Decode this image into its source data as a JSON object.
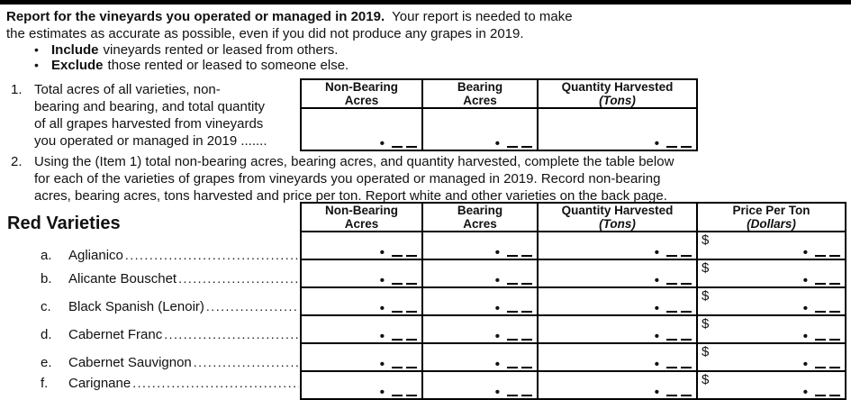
{
  "intro": {
    "heading_bold": "Report for the vineyards you operated or managed in 2019.",
    "heading_rest": "Your report is needed to make",
    "line2": "the estimates as accurate as possible, even if you did not produce any grapes in 2019.",
    "bullet_marker": "•",
    "bullets": [
      {
        "bold": "Include",
        "rest": "vineyards rented or leased from others."
      },
      {
        "bold": "Exclude",
        "rest": "those rented or leased to someone else."
      }
    ]
  },
  "item1": {
    "number": "1.",
    "lines": [
      "Total acres of all varieties, non-",
      "bearing and bearing, and total quantity",
      "of all grapes harvested from vineyards",
      "you operated or managed in 2019 ......."
    ],
    "table": {
      "columns": [
        {
          "line1": "Non-Bearing",
          "line2": "Acres"
        },
        {
          "line1": "Bearing",
          "line2": "Acres"
        },
        {
          "line1": "Quantity Harvested",
          "line2": "(Tons)"
        }
      ],
      "entry_marker": "•"
    }
  },
  "item2": {
    "number": "2.",
    "lines": [
      "Using the (Item 1) total non-bearing acres, bearing acres, and quantity harvested, complete the table below",
      "for each of the varieties of grapes from vineyards you operated or managed in 2019. Record non-bearing",
      "acres, bearing acres, tons harvested and price per ton.  Report white and other varieties on the back page."
    ]
  },
  "varieties": {
    "section_title": "Red Varieties",
    "columns": [
      {
        "line1": "Non-Bearing",
        "line2": "Acres"
      },
      {
        "line1": "Bearing",
        "line2": "Acres"
      },
      {
        "line1": "Quantity Harvested",
        "line2": "(Tons)"
      },
      {
        "line1": "Price Per Ton",
        "line2": "(Dollars)"
      }
    ],
    "currency_symbol": "$",
    "entry_marker": "•",
    "rows": [
      {
        "label": "a.",
        "name": "Aglianico"
      },
      {
        "label": "b.",
        "name": "Alicante Bouschet"
      },
      {
        "label": "c.",
        "name": "Black Spanish (Lenoir)"
      },
      {
        "label": "d.",
        "name": "Cabernet Franc"
      },
      {
        "label": "e.",
        "name": "Cabernet Sauvignon"
      },
      {
        "label": "f.",
        "name": "Carignane"
      }
    ]
  }
}
